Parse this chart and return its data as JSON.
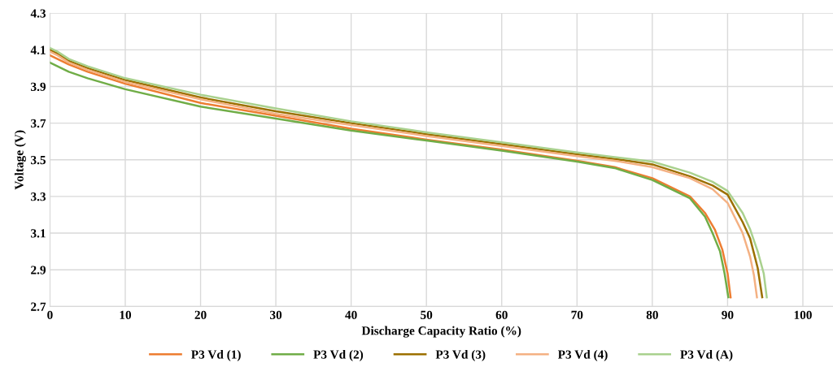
{
  "chart_data": {
    "type": "line",
    "xlabel": "Discharge Capacity Ratio (%)",
    "ylabel": "Voltage (V)",
    "xlim": [
      0,
      104
    ],
    "xticks": [
      0,
      10,
      20,
      30,
      40,
      50,
      60,
      70,
      80,
      90,
      100
    ],
    "ylim": [
      2.7,
      4.3
    ],
    "yticks": [
      2.7,
      2.9,
      3.1,
      3.3,
      3.5,
      3.7,
      3.9,
      4.1,
      4.3
    ],
    "grid": true,
    "legend": "bottom",
    "marker": "none",
    "line_style": "solid",
    "series": [
      {
        "name": "P3 Vd (1)",
        "color": "#ed7d31",
        "x": [
          0,
          1,
          2.5,
          5,
          10,
          20,
          30,
          40,
          50,
          60,
          70,
          75,
          80,
          85,
          87,
          88.3,
          89.3,
          90,
          90.4
        ],
        "values": [
          4.07,
          4.05,
          4.02,
          3.98,
          3.915,
          3.81,
          3.74,
          3.67,
          3.61,
          3.555,
          3.495,
          3.46,
          3.4,
          3.3,
          3.21,
          3.12,
          3.01,
          2.88,
          2.75
        ]
      },
      {
        "name": "P3 Vd (2)",
        "color": "#70ad47",
        "x": [
          0,
          1,
          2.5,
          5,
          10,
          20,
          30,
          40,
          50,
          60,
          70,
          75,
          80,
          85,
          87,
          88,
          89,
          89.6,
          90.1
        ],
        "values": [
          4.03,
          4.01,
          3.98,
          3.945,
          3.885,
          3.79,
          3.725,
          3.66,
          3.605,
          3.55,
          3.49,
          3.455,
          3.39,
          3.29,
          3.19,
          3.1,
          3.0,
          2.88,
          2.75
        ]
      },
      {
        "name": "P3 Vd (3)",
        "color": "#9c7000",
        "x": [
          0,
          1,
          2.5,
          5,
          10,
          20,
          30,
          40,
          50,
          60,
          70,
          75,
          80,
          85,
          88,
          90,
          92,
          93,
          94,
          94.6
        ],
        "values": [
          4.1,
          4.08,
          4.04,
          4.0,
          3.935,
          3.84,
          3.765,
          3.7,
          3.64,
          3.585,
          3.53,
          3.505,
          3.475,
          3.41,
          3.36,
          3.31,
          3.16,
          3.07,
          2.91,
          2.75
        ]
      },
      {
        "name": "P3 Vd (4)",
        "color": "#f4b183",
        "x": [
          0,
          1,
          2.5,
          5,
          10,
          20,
          30,
          40,
          50,
          60,
          70,
          75,
          80,
          85,
          88,
          90,
          92,
          93,
          93.5,
          93.9
        ],
        "values": [
          4.09,
          4.07,
          4.03,
          3.99,
          3.925,
          3.83,
          3.75,
          3.69,
          3.63,
          3.575,
          3.52,
          3.495,
          3.46,
          3.4,
          3.34,
          3.265,
          3.1,
          2.97,
          2.87,
          2.75
        ]
      },
      {
        "name": "P3 Vd (A)",
        "color": "#a9d18e",
        "x": [
          0,
          1,
          2.5,
          5,
          10,
          20,
          30,
          40,
          50,
          60,
          70,
          75,
          80,
          85,
          88,
          90,
          92,
          93,
          94,
          94.8,
          95.2
        ],
        "values": [
          4.11,
          4.09,
          4.05,
          4.01,
          3.945,
          3.855,
          3.78,
          3.71,
          3.65,
          3.595,
          3.54,
          3.515,
          3.49,
          3.43,
          3.38,
          3.33,
          3.21,
          3.12,
          3.0,
          2.88,
          2.75
        ]
      }
    ]
  }
}
